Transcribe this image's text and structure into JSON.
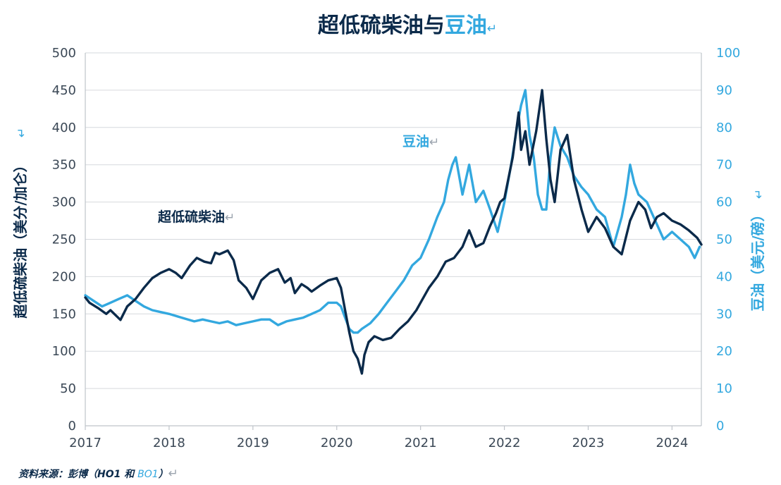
{
  "chart_data": {
    "type": "line",
    "title": "超低硫柴油与豆油",
    "title_parts": {
      "main": "超低硫柴油与",
      "highlight": "豆油",
      "mark": "↵"
    },
    "ylabel_left": "超低硫柴油（美分/加仑）",
    "ylabel_right": "豆油（美元/磅）",
    "ylabel_mark": "↵",
    "xlim": [
      2017,
      2024.35
    ],
    "ylim_left": [
      0,
      500
    ],
    "ylim_right": [
      0,
      100
    ],
    "x_ticks": [
      "2017",
      "2018",
      "2019",
      "2020",
      "2021",
      "2022",
      "2023",
      "2024"
    ],
    "y_ticks_left": [
      "0",
      "50",
      "100",
      "150",
      "200",
      "250",
      "300",
      "350",
      "400",
      "450",
      "500"
    ],
    "y_ticks_right": [
      "0",
      "10",
      "20",
      "30",
      "40",
      "50",
      "60",
      "70",
      "80",
      "90",
      "100"
    ],
    "grid": true,
    "annotations": {
      "diesel": {
        "label": "超低硫柴油",
        "mark": "↵"
      },
      "soy": {
        "label": "豆油",
        "mark": "↵"
      }
    },
    "source": {
      "prefix": "资料来源：彭博（HO1 和 ",
      "highlight": "BO1",
      "suffix": "）",
      "mark": "↵"
    },
    "series": [
      {
        "name": "超低硫柴油",
        "axis": "left",
        "color": "#0b2a4a",
        "x": [
          2017.0,
          2017.05,
          2017.15,
          2017.25,
          2017.3,
          2017.42,
          2017.5,
          2017.6,
          2017.7,
          2017.8,
          2017.9,
          2018.0,
          2018.08,
          2018.15,
          2018.25,
          2018.33,
          2018.42,
          2018.5,
          2018.55,
          2018.6,
          2018.7,
          2018.77,
          2018.83,
          2018.92,
          2019.0,
          2019.1,
          2019.2,
          2019.3,
          2019.38,
          2019.45,
          2019.5,
          2019.58,
          2019.65,
          2019.7,
          2019.8,
          2019.9,
          2020.0,
          2020.05,
          2020.1,
          2020.15,
          2020.2,
          2020.25,
          2020.3,
          2020.33,
          2020.38,
          2020.45,
          2020.55,
          2020.65,
          2020.75,
          2020.85,
          2020.95,
          2021.0,
          2021.1,
          2021.2,
          2021.3,
          2021.4,
          2021.5,
          2021.58,
          2021.66,
          2021.75,
          2021.83,
          2021.9,
          2021.95,
          2022.0,
          2022.1,
          2022.17,
          2022.2,
          2022.25,
          2022.3,
          2022.38,
          2022.45,
          2022.5,
          2022.55,
          2022.6,
          2022.67,
          2022.75,
          2022.83,
          2022.92,
          2023.0,
          2023.1,
          2023.2,
          2023.3,
          2023.4,
          2023.5,
          2023.6,
          2023.68,
          2023.75,
          2023.82,
          2023.9,
          2024.0,
          2024.1,
          2024.2,
          2024.3,
          2024.35
        ],
        "values": [
          172,
          165,
          158,
          150,
          155,
          142,
          160,
          170,
          185,
          198,
          205,
          210,
          205,
          198,
          215,
          225,
          220,
          218,
          232,
          230,
          235,
          222,
          195,
          185,
          170,
          195,
          205,
          210,
          192,
          198,
          178,
          190,
          185,
          180,
          188,
          195,
          198,
          185,
          155,
          125,
          100,
          90,
          70,
          95,
          112,
          120,
          115,
          118,
          130,
          140,
          155,
          165,
          185,
          200,
          220,
          225,
          240,
          262,
          240,
          245,
          268,
          285,
          300,
          305,
          360,
          420,
          370,
          395,
          350,
          395,
          450,
          385,
          330,
          300,
          370,
          390,
          330,
          290,
          260,
          280,
          265,
          240,
          230,
          275,
          300,
          290,
          265,
          280,
          285,
          275,
          270,
          262,
          252,
          243
        ],
        "description": "diesel"
      },
      {
        "name": "豆油",
        "axis": "right",
        "color": "#33a8df",
        "x": [
          2017.0,
          2017.1,
          2017.2,
          2017.3,
          2017.4,
          2017.5,
          2017.6,
          2017.7,
          2017.8,
          2017.9,
          2018.0,
          2018.15,
          2018.3,
          2018.4,
          2018.5,
          2018.6,
          2018.7,
          2018.8,
          2018.9,
          2019.0,
          2019.1,
          2019.2,
          2019.3,
          2019.4,
          2019.5,
          2019.6,
          2019.7,
          2019.8,
          2019.9,
          2020.0,
          2020.05,
          2020.1,
          2020.15,
          2020.2,
          2020.25,
          2020.3,
          2020.4,
          2020.5,
          2020.6,
          2020.7,
          2020.8,
          2020.9,
          2021.0,
          2021.1,
          2021.2,
          2021.28,
          2021.33,
          2021.38,
          2021.42,
          2021.5,
          2021.58,
          2021.66,
          2021.75,
          2021.83,
          2021.92,
          2022.0,
          2022.08,
          2022.15,
          2022.2,
          2022.25,
          2022.3,
          2022.35,
          2022.4,
          2022.45,
          2022.5,
          2022.55,
          2022.6,
          2022.67,
          2022.75,
          2022.83,
          2022.92,
          2023.0,
          2023.1,
          2023.2,
          2023.3,
          2023.4,
          2023.45,
          2023.5,
          2023.55,
          2023.6,
          2023.7,
          2023.8,
          2023.9,
          2024.0,
          2024.1,
          2024.2,
          2024.27,
          2024.33
        ],
        "values": [
          35,
          33.5,
          32,
          33,
          34,
          35,
          33.5,
          32,
          31,
          30.5,
          30,
          29,
          28,
          28.5,
          28,
          27.5,
          28,
          27,
          27.5,
          28,
          28.5,
          28.5,
          27,
          28,
          28.5,
          29,
          30,
          31,
          33,
          33,
          32,
          29,
          26,
          25,
          25,
          26,
          27.5,
          30,
          33,
          36,
          39,
          43,
          45,
          50,
          56,
          60,
          66,
          70,
          72,
          62,
          70,
          60,
          63,
          58,
          52,
          60,
          70,
          80,
          86,
          90,
          78,
          72,
          62,
          58,
          58,
          72,
          80,
          75,
          72,
          67,
          64,
          62,
          58,
          56,
          48,
          56,
          62,
          70,
          65,
          62,
          60,
          55,
          50,
          52,
          50,
          48,
          45,
          48
        ],
        "description": "soy"
      }
    ]
  }
}
